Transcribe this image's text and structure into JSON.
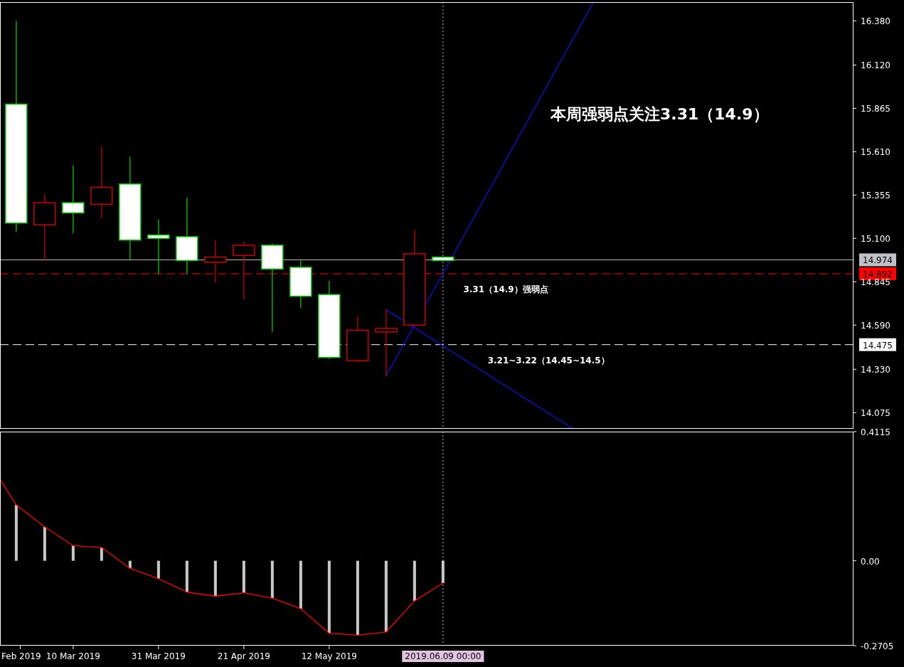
{
  "chart_data": [
    {
      "type": "candlestick",
      "title": "本周强弱点关注3.31（14.9）",
      "x": [
        "2019-02-24",
        "2019-03-03",
        "2019-03-10",
        "2019-03-17",
        "2019-03-24",
        "2019-03-31",
        "2019-04-07",
        "2019-04-14",
        "2019-04-21",
        "2019-04-28",
        "2019-05-05",
        "2019-05-12",
        "2019-05-19",
        "2019-05-26",
        "2019-06-02",
        "2019-06-09"
      ],
      "ohlc": [
        [
          15.19,
          16.38,
          15.14,
          15.89
        ],
        [
          15.31,
          15.36,
          14.97,
          15.18
        ],
        [
          15.25,
          15.53,
          15.13,
          15.31
        ],
        [
          15.4,
          15.64,
          15.22,
          15.3
        ],
        [
          15.09,
          15.58,
          14.97,
          15.42
        ],
        [
          15.1,
          15.21,
          14.89,
          15.12
        ],
        [
          14.97,
          15.34,
          14.89,
          15.11
        ],
        [
          14.99,
          15.09,
          14.84,
          14.96
        ],
        [
          15.06,
          15.08,
          14.74,
          15.0
        ],
        [
          14.92,
          15.07,
          14.55,
          15.06
        ],
        [
          14.76,
          14.97,
          14.69,
          14.93
        ],
        [
          14.4,
          14.85,
          14.39,
          14.77
        ],
        [
          14.56,
          14.64,
          14.37,
          14.38
        ],
        [
          14.57,
          14.68,
          14.29,
          14.55
        ],
        [
          15.01,
          15.15,
          14.59,
          14.59
        ],
        [
          14.97,
          14.99,
          14.97,
          14.99
        ]
      ],
      "colors": [
        "#00cc00",
        "#cc0000",
        "#00cc00",
        "#cc0000",
        "#00cc00",
        "#00cc00",
        "#00cc00",
        "#cc0000",
        "#cc0000",
        "#00cc00",
        "#00cc00",
        "#00cc00",
        "#cc0000",
        "#cc0000",
        "#cc0000",
        "#00cc00"
      ],
      "series": [
        {
          "type": "line",
          "x": [
            "2019-05-26",
            "2019-07-16"
          ],
          "values": [
            14.29,
            16.49
          ],
          "color": "#1010e0"
        },
        {
          "type": "line",
          "x": [
            "2019-05-26",
            "2019-07-11"
          ],
          "values": [
            14.68,
            13.98
          ],
          "color": "#1010e0"
        }
      ],
      "xlim": [
        "2019-02-20",
        "2019-09-18"
      ],
      "ylim": [
        13.98,
        16.49
      ],
      "yticks": [
        {
          "value": 16.38,
          "label": "16.380"
        },
        {
          "value": 16.12,
          "label": "16.120"
        },
        {
          "value": 15.865,
          "label": "15.865"
        },
        {
          "value": 15.61,
          "label": "15.610"
        },
        {
          "value": 15.355,
          "label": "15.355"
        },
        {
          "value": 15.1,
          "label": "15.100"
        },
        {
          "value": 14.845,
          "label": "14.845"
        },
        {
          "value": 14.59,
          "label": "14.590"
        },
        {
          "value": 14.33,
          "label": "14.330"
        },
        {
          "value": 14.075,
          "label": "14.075"
        }
      ],
      "ref_lines": [
        {
          "axis": "y",
          "value": 14.974,
          "label": "14.974",
          "color": "#c0c0c8",
          "line_style": "solid"
        },
        {
          "axis": "y",
          "value": 14.892,
          "label": "14.892",
          "color": "#ff0000",
          "line_style": "dashed"
        },
        {
          "axis": "y",
          "value": 14.475,
          "label": "14.475",
          "color": "#ffffff",
          "line_style": "dashed"
        },
        {
          "axis": "x",
          "value": "2019-06-09",
          "color": "#c0c0c0",
          "line_style": "dotted"
        }
      ],
      "annotations": [
        {
          "text": "3.31（14.9）强弱点",
          "x": "2019-06-14",
          "y": 14.892
        },
        {
          "text": "3.21~3.22（14.45~14.5）",
          "x": "2019-06-20",
          "y": 14.475
        }
      ],
      "tick_labels": "y"
    },
    {
      "type": "bar",
      "x": [
        "2019-02-24",
        "2019-03-03",
        "2019-03-10",
        "2019-03-17",
        "2019-03-24",
        "2019-03-31",
        "2019-04-07",
        "2019-04-14",
        "2019-04-21",
        "2019-04-28",
        "2019-05-05",
        "2019-05-12",
        "2019-05-19",
        "2019-05-26",
        "2019-06-02",
        "2019-06-09"
      ],
      "series": [
        {
          "values": [
            0.178,
            0.108,
            0.048,
            0.042,
            -0.024,
            -0.057,
            -0.1,
            -0.113,
            -0.102,
            -0.119,
            -0.153,
            -0.231,
            -0.237,
            -0.227,
            -0.128,
            -0.071
          ],
          "color": "#c8c8c8"
        },
        {
          "type": "line",
          "x": [
            "2019-02-20",
            "2019-02-24",
            "2019-03-03",
            "2019-03-10",
            "2019-03-17",
            "2019-03-24",
            "2019-03-31",
            "2019-04-07",
            "2019-04-14",
            "2019-04-21",
            "2019-04-28",
            "2019-05-05",
            "2019-05-12",
            "2019-05-19",
            "2019-05-26",
            "2019-06-02",
            "2019-06-09"
          ],
          "values": [
            0.26,
            0.178,
            0.108,
            0.048,
            0.042,
            -0.024,
            -0.057,
            -0.1,
            -0.113,
            -0.102,
            -0.119,
            -0.153,
            -0.231,
            -0.237,
            -0.227,
            -0.128,
            -0.071
          ],
          "color": "#ff0000"
        }
      ],
      "xlim": [
        "2019-02-20",
        "2019-09-18"
      ],
      "ylim": [
        -0.2705,
        0.4115
      ],
      "yticks": [
        {
          "value": 0.4115,
          "label": "0.4115"
        },
        {
          "value": 0,
          "label": "0.00"
        },
        {
          "value": -0.2705,
          "label": "-0.2705"
        }
      ],
      "xticks": [
        {
          "value": "2019-02-25",
          "label": "Feb 2019"
        },
        {
          "value": "2019-03-10",
          "label": "10 Mar 2019"
        },
        {
          "value": "2019-03-31",
          "label": "31 Mar 2019"
        },
        {
          "value": "2019-04-21",
          "label": "21 Apr 2019"
        },
        {
          "value": "2019-05-12",
          "label": "12 May 2019"
        }
      ],
      "ref_lines": [
        {
          "axis": "x",
          "value": "2019-06-09",
          "label": "2019.06.09 00:00",
          "color": "#c0c0c0",
          "line_style": "dotted"
        }
      ]
    }
  ]
}
